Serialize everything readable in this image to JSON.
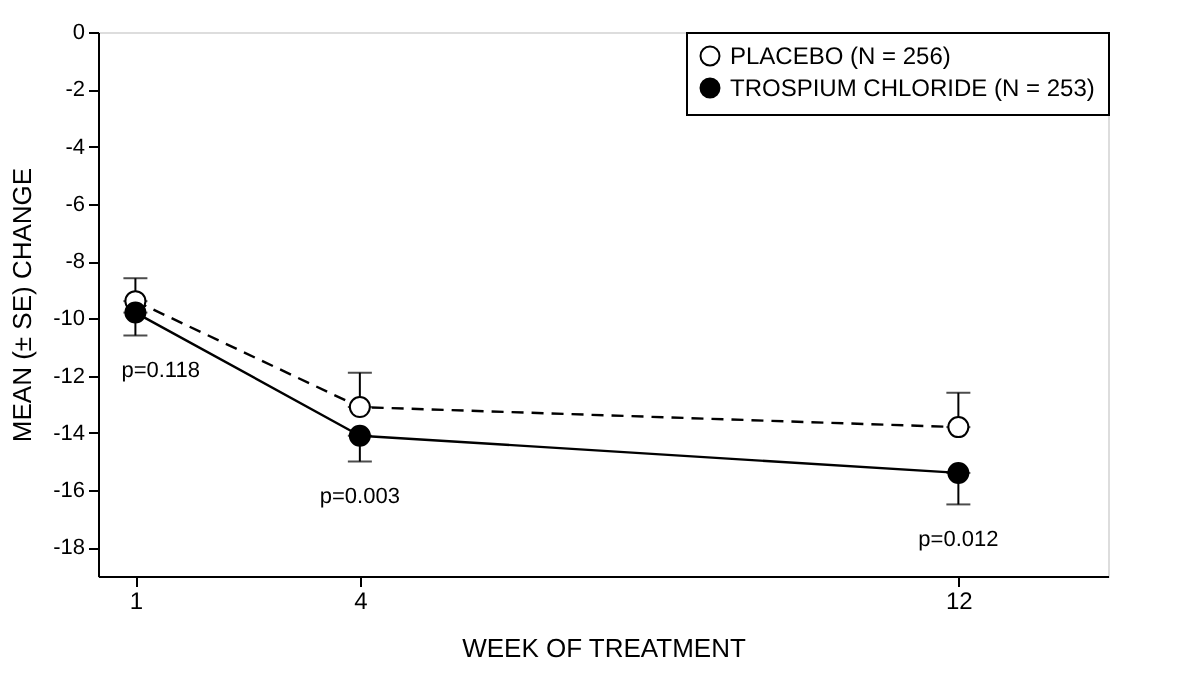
{
  "chart_data": {
    "type": "line",
    "xlabel": "WEEK OF TREATMENT",
    "ylabel": "MEAN (± SE) CHANGE",
    "x": [
      1,
      4,
      12
    ],
    "series": [
      {
        "name": "PLACEBO (N = 256)",
        "color": "#000000",
        "line_style": "dashed",
        "values": [
          -9.4,
          -13.1,
          -13.8
        ],
        "errors": [
          [
            -9.4,
            -8.6
          ],
          [
            -13.1,
            -11.9
          ],
          [
            -13.8,
            -12.6
          ]
        ]
      },
      {
        "name": "TROSPIUM CHLORIDE (N = 253)",
        "color": "#000000",
        "line_style": "solid",
        "values": [
          -9.8,
          -14.1,
          -15.4
        ],
        "errors": [
          [
            -10.6,
            -9.8
          ],
          [
            -15.0,
            -14.1
          ],
          [
            -16.5,
            -15.4
          ]
        ]
      }
    ],
    "xlim": [
      0.5,
      14
    ],
    "xticks": [
      1,
      4,
      12
    ],
    "ylim": [
      -19,
      0
    ],
    "yticks": [
      0,
      -2,
      -4,
      -6,
      -8,
      -10,
      -12,
      -14,
      -16,
      -18
    ],
    "marker": "circle",
    "grid": false,
    "legend": "top right",
    "annotations": [
      "p=0.118",
      "p=0.003",
      "p=0.012"
    ]
  }
}
